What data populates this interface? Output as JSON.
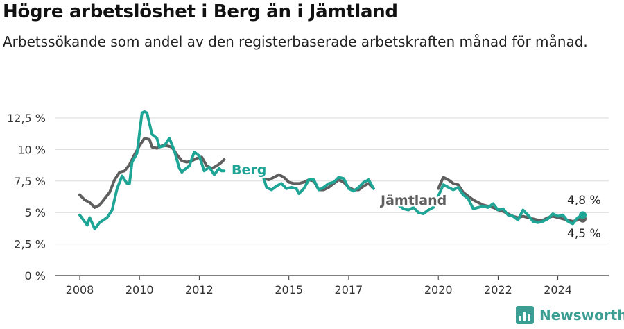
{
  "header": {
    "title": "Högre arbetslöshet i Berg än i Jämtland",
    "subtitle": "Arbetssökande som andel av den registerbaserade arbetskraften månad för månad."
  },
  "brand": {
    "name": "Newsworthy",
    "color": "#3a9f92"
  },
  "chart_data": {
    "type": "line",
    "xlabel": "",
    "ylabel": "",
    "ylim": [
      0,
      13
    ],
    "y_ticks": [
      {
        "value": 0,
        "label": "0 %"
      },
      {
        "value": 2.5,
        "label": "2,5 %"
      },
      {
        "value": 5,
        "label": "5 %"
      },
      {
        "value": 7.5,
        "label": "7,5 %"
      },
      {
        "value": 10,
        "label": "10 %"
      },
      {
        "value": 12.5,
        "label": "12,5 %"
      }
    ],
    "x_ticks": [
      "2008",
      "2010",
      "2012",
      "2015",
      "2017",
      "2020",
      "2022",
      "2024"
    ],
    "grid": true,
    "series": [
      {
        "name": "Berg",
        "color": "#1fa596",
        "end_label": "4,8 %",
        "points": [
          [
            "2008-01",
            4.8
          ],
          [
            "2008-04",
            4.0
          ],
          [
            "2008-05",
            4.6
          ],
          [
            "2008-07",
            3.7
          ],
          [
            "2008-09",
            4.2
          ],
          [
            "2008-12",
            4.6
          ],
          [
            "2009-02",
            5.2
          ],
          [
            "2009-04",
            6.9
          ],
          [
            "2009-06",
            7.9
          ],
          [
            "2009-08",
            7.3
          ],
          [
            "2009-09",
            7.3
          ],
          [
            "2009-10",
            9.0
          ],
          [
            "2009-12",
            9.7
          ],
          [
            "2010-02",
            12.9
          ],
          [
            "2010-03",
            13.0
          ],
          [
            "2010-04",
            12.9
          ],
          [
            "2010-06",
            11.2
          ],
          [
            "2010-08",
            10.9
          ],
          [
            "2010-09",
            10.2
          ],
          [
            "2010-11",
            10.3
          ],
          [
            "2011-01",
            10.9
          ],
          [
            "2011-03",
            9.9
          ],
          [
            "2011-05",
            8.5
          ],
          [
            "2011-06",
            8.2
          ],
          [
            "2011-07",
            8.4
          ],
          [
            "2011-09",
            8.7
          ],
          [
            "2011-11",
            9.8
          ],
          [
            "2012-01",
            9.5
          ],
          [
            "2012-03",
            8.3
          ],
          [
            "2012-05",
            8.6
          ],
          [
            "2012-07",
            8.0
          ],
          [
            "2012-09",
            8.5
          ],
          [
            "2012-10",
            8.3
          ],
          [
            "2012-11",
            8.3
          ],
          null,
          [
            "2014-02",
            8.3
          ],
          [
            "2014-04",
            7.0
          ],
          [
            "2014-06",
            6.8
          ],
          [
            "2014-08",
            7.1
          ],
          [
            "2014-10",
            7.3
          ],
          [
            "2014-12",
            6.9
          ],
          [
            "2015-02",
            7.0
          ],
          [
            "2015-04",
            6.9
          ],
          [
            "2015-05",
            6.5
          ],
          [
            "2015-07",
            6.9
          ],
          [
            "2015-09",
            7.6
          ],
          [
            "2015-11",
            7.6
          ],
          [
            "2016-01",
            6.8
          ],
          [
            "2016-03",
            7.0
          ],
          [
            "2016-05",
            7.3
          ],
          [
            "2016-07",
            7.4
          ],
          [
            "2016-09",
            7.8
          ],
          [
            "2016-11",
            7.7
          ],
          [
            "2017-01",
            6.9
          ],
          [
            "2017-03",
            6.7
          ],
          [
            "2017-05",
            7.0
          ],
          [
            "2017-07",
            7.4
          ],
          [
            "2017-09",
            7.6
          ],
          [
            "2017-11",
            6.9
          ],
          null,
          [
            "2018-09",
            5.6
          ],
          [
            "2018-11",
            5.3
          ],
          [
            "2019-01",
            5.2
          ],
          [
            "2019-03",
            5.4
          ],
          [
            "2019-05",
            5.0
          ],
          [
            "2019-07",
            4.9
          ],
          [
            "2019-09",
            5.2
          ],
          [
            "2019-11",
            5.4
          ],
          [
            "2020-03",
            7.2
          ],
          [
            "2020-05",
            7.0
          ],
          [
            "2020-07",
            6.8
          ],
          [
            "2020-09",
            7.0
          ],
          [
            "2020-11",
            6.4
          ],
          [
            "2021-01",
            6.1
          ],
          [
            "2021-03",
            5.3
          ],
          [
            "2021-05",
            5.4
          ],
          [
            "2021-07",
            5.5
          ],
          [
            "2021-09",
            5.4
          ],
          [
            "2021-11",
            5.7
          ],
          [
            "2022-01",
            5.2
          ],
          [
            "2022-03",
            5.3
          ],
          [
            "2022-05",
            4.8
          ],
          [
            "2022-07",
            4.7
          ],
          [
            "2022-09",
            4.4
          ],
          [
            "2022-11",
            5.2
          ],
          [
            "2023-01",
            4.8
          ],
          [
            "2023-03",
            4.3
          ],
          [
            "2023-05",
            4.2
          ],
          [
            "2023-07",
            4.3
          ],
          [
            "2023-09",
            4.5
          ],
          [
            "2023-11",
            4.9
          ],
          [
            "2024-01",
            4.7
          ],
          [
            "2024-03",
            4.8
          ],
          [
            "2024-05",
            4.3
          ],
          [
            "2024-07",
            4.1
          ],
          [
            "2024-09",
            4.6
          ],
          [
            "2024-11",
            4.8
          ]
        ]
      },
      {
        "name": "Jämtland",
        "color": "#5f5f5f",
        "end_label": "4,5 %",
        "points": [
          [
            "2008-01",
            6.4
          ],
          [
            "2008-03",
            6.0
          ],
          [
            "2008-05",
            5.8
          ],
          [
            "2008-07",
            5.4
          ],
          [
            "2008-09",
            5.6
          ],
          [
            "2008-11",
            6.1
          ],
          [
            "2009-01",
            6.6
          ],
          [
            "2009-03",
            7.6
          ],
          [
            "2009-05",
            8.2
          ],
          [
            "2009-07",
            8.3
          ],
          [
            "2009-09",
            8.8
          ],
          [
            "2009-11",
            9.6
          ],
          [
            "2010-01",
            10.3
          ],
          [
            "2010-03",
            10.9
          ],
          [
            "2010-05",
            10.8
          ],
          [
            "2010-06",
            10.2
          ],
          [
            "2010-08",
            10.1
          ],
          [
            "2010-10",
            10.3
          ],
          [
            "2010-12",
            10.3
          ],
          [
            "2011-02",
            10.2
          ],
          [
            "2011-04",
            9.6
          ],
          [
            "2011-06",
            9.1
          ],
          [
            "2011-08",
            9.0
          ],
          [
            "2011-10",
            9.1
          ],
          [
            "2011-12",
            9.3
          ],
          [
            "2012-02",
            9.4
          ],
          [
            "2012-04",
            8.7
          ],
          [
            "2012-06",
            8.5
          ],
          [
            "2012-08",
            8.7
          ],
          [
            "2012-10",
            9.0
          ],
          [
            "2012-11",
            9.2
          ],
          null,
          [
            "2014-01",
            8.0
          ],
          [
            "2014-03",
            7.7
          ],
          [
            "2014-05",
            7.6
          ],
          [
            "2014-07",
            7.8
          ],
          [
            "2014-09",
            8.0
          ],
          [
            "2014-11",
            7.8
          ],
          [
            "2015-01",
            7.4
          ],
          [
            "2015-03",
            7.3
          ],
          [
            "2015-05",
            7.3
          ],
          [
            "2015-07",
            7.4
          ],
          [
            "2015-09",
            7.6
          ],
          [
            "2015-11",
            7.5
          ],
          [
            "2016-01",
            6.8
          ],
          [
            "2016-03",
            6.8
          ],
          [
            "2016-05",
            7.0
          ],
          [
            "2016-07",
            7.3
          ],
          [
            "2016-09",
            7.6
          ],
          [
            "2016-11",
            7.4
          ],
          [
            "2017-01",
            7.0
          ],
          [
            "2017-03",
            6.8
          ],
          [
            "2017-05",
            6.8
          ],
          [
            "2017-07",
            7.1
          ],
          [
            "2017-09",
            7.3
          ],
          [
            "2017-11",
            6.9
          ],
          null,
          [
            "2020-01",
            6.9
          ],
          [
            "2020-03",
            7.8
          ],
          [
            "2020-05",
            7.6
          ],
          [
            "2020-07",
            7.3
          ],
          [
            "2020-09",
            7.2
          ],
          [
            "2020-11",
            6.6
          ],
          [
            "2021-01",
            6.3
          ],
          [
            "2021-03",
            6.0
          ],
          [
            "2021-05",
            5.8
          ],
          [
            "2021-07",
            5.6
          ],
          [
            "2021-09",
            5.5
          ],
          [
            "2021-11",
            5.4
          ],
          [
            "2022-01",
            5.2
          ],
          [
            "2022-03",
            5.1
          ],
          [
            "2022-05",
            4.9
          ],
          [
            "2022-07",
            4.7
          ],
          [
            "2022-09",
            4.6
          ],
          [
            "2022-11",
            4.7
          ],
          [
            "2023-01",
            4.6
          ],
          [
            "2023-03",
            4.5
          ],
          [
            "2023-05",
            4.4
          ],
          [
            "2023-07",
            4.4
          ],
          [
            "2023-09",
            4.6
          ],
          [
            "2023-11",
            4.7
          ],
          [
            "2024-01",
            4.6
          ],
          [
            "2024-03",
            4.5
          ],
          [
            "2024-05",
            4.4
          ],
          [
            "2024-07",
            4.3
          ],
          [
            "2024-09",
            4.4
          ],
          [
            "2024-11",
            4.5
          ]
        ]
      }
    ]
  }
}
